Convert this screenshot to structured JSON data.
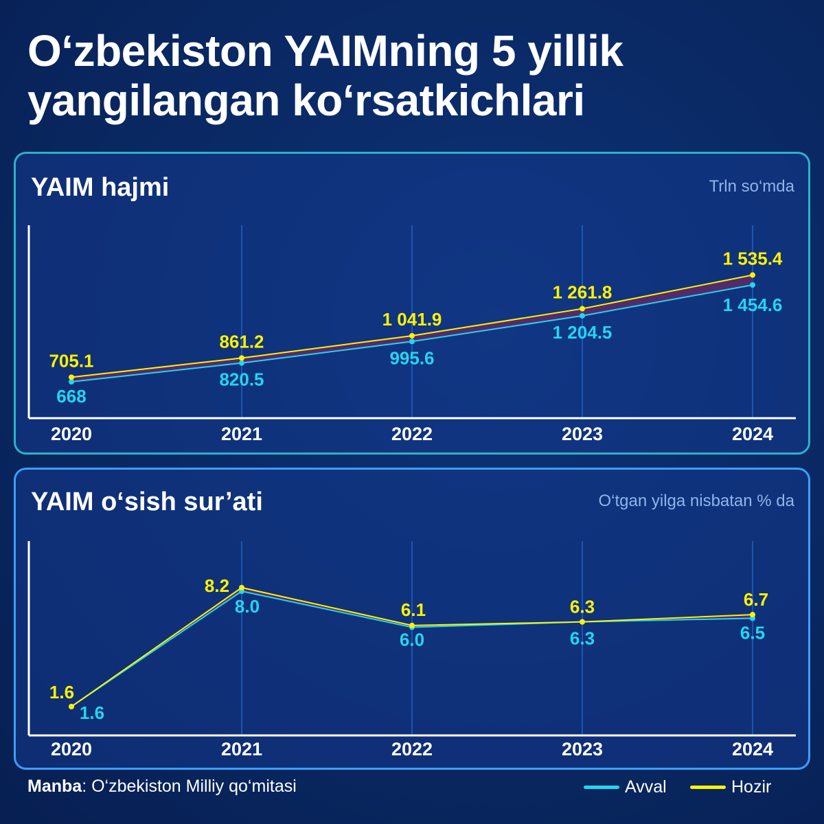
{
  "title": {
    "line1": "O‘zbekiston YAIMning 5 yillik",
    "line2": "yangilangan ko‘rsatkichlari"
  },
  "colors": {
    "previous": "#22d6f0",
    "current": "#fff200",
    "band": "#5a2a6a",
    "grid": "#1f5fc4",
    "axis": "#ffffff"
  },
  "chart_data": [
    {
      "type": "line",
      "title": "YAIM hajmi",
      "unit": "Trln so‘mda",
      "categories": [
        "2020",
        "2021",
        "2022",
        "2023",
        "2024"
      ],
      "series": [
        {
          "name": "Avval",
          "values": [
            668,
            820.5,
            995.6,
            1204.5,
            1454.6
          ],
          "labels": [
            "668",
            "820.5",
            "995.6",
            "1 204.5",
            "1 454.6"
          ]
        },
        {
          "name": "Hozir",
          "values": [
            705.1,
            861.2,
            1041.9,
            1261.8,
            1535.4
          ],
          "labels": [
            "705.1",
            "861.2",
            "1 041.9",
            "1 261.8",
            "1 535.4"
          ]
        }
      ],
      "ylim": [
        0,
        1700
      ]
    },
    {
      "type": "line",
      "title": "YAIM o‘sish sur’ati",
      "unit": "O‘tgan yilga nisbatan % da",
      "categories": [
        "2020",
        "2021",
        "2022",
        "2023",
        "2024"
      ],
      "series": [
        {
          "name": "Avval",
          "values": [
            1.6,
            8.0,
            6.0,
            6.3,
            6.5
          ],
          "labels": [
            "1.6",
            "8.0",
            "6.0",
            "6.3",
            "6.5"
          ]
        },
        {
          "name": "Hozir",
          "values": [
            1.6,
            8.2,
            6.1,
            6.3,
            6.7
          ],
          "labels": [
            "1.6",
            "8.2",
            "6.1",
            "6.3",
            "6.7"
          ]
        }
      ],
      "ylim": [
        0,
        9
      ]
    }
  ],
  "footer": {
    "source_label": "Manba",
    "source_text": ": O‘zbekiston Milliy qo‘mitasi"
  },
  "legend": {
    "previous": "Avval",
    "current": "Hozir"
  }
}
